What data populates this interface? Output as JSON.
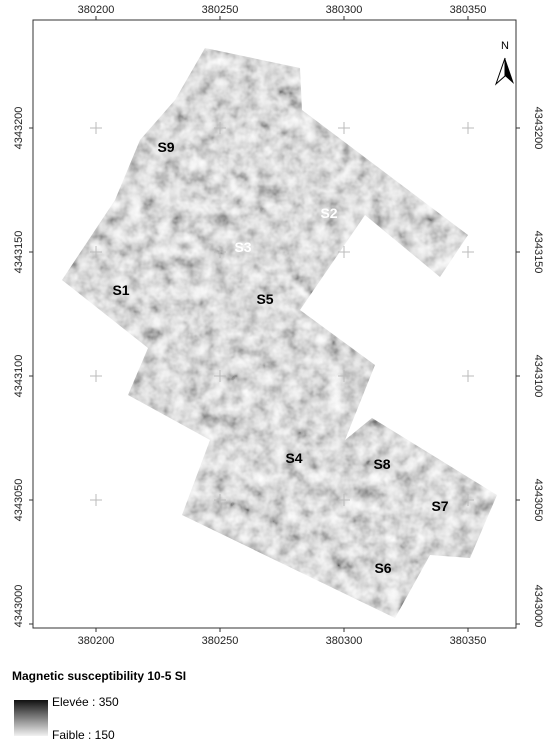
{
  "map": {
    "x_ticks": [
      380200,
      380250,
      380300,
      380350
    ],
    "y_ticks": [
      4343200,
      4343150,
      4343100,
      4343050,
      4343000
    ],
    "north_label": "N",
    "site_labels": [
      "S9",
      "S2",
      "S3",
      "S1",
      "S5",
      "S4",
      "S8",
      "S7",
      "S6"
    ],
    "legend": {
      "title": "Magnetic susceptibility 10-5 SI",
      "high_label": "Elevée : 350",
      "low_label": "Faible : 150"
    }
  }
}
